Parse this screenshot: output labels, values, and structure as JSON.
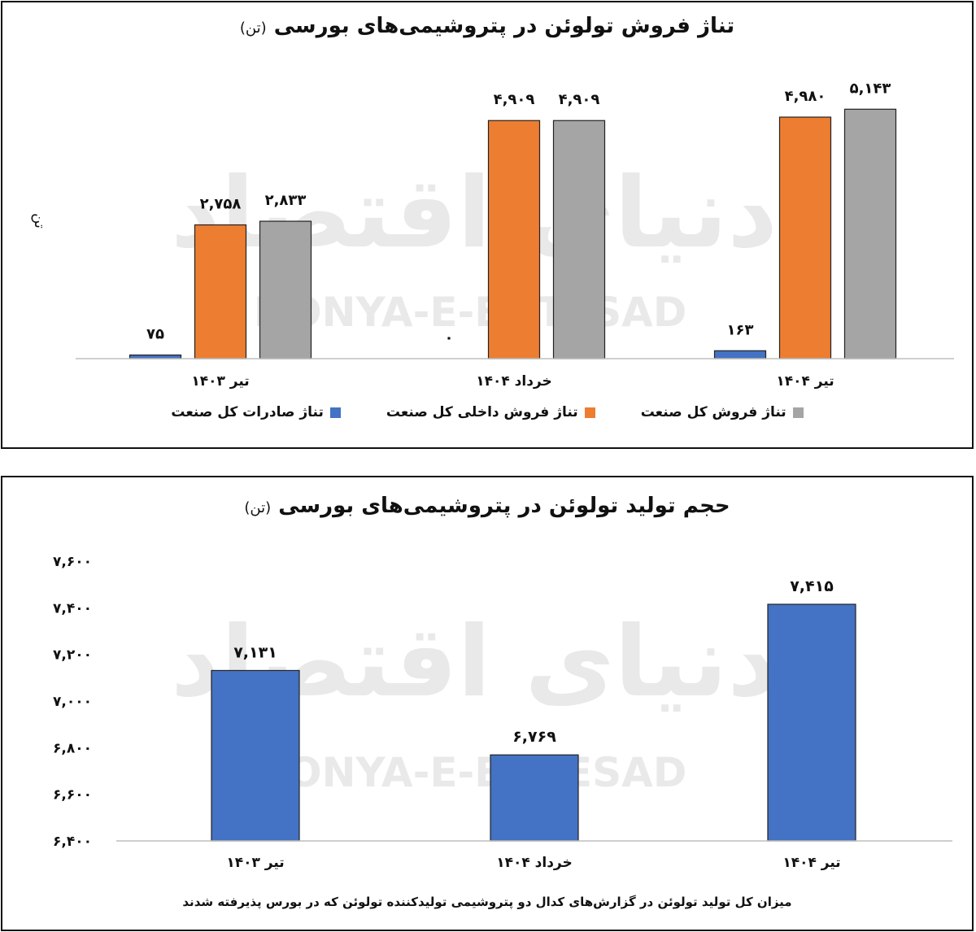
{
  "charts": [
    {
      "title": "تناژ فروش تولوئن در پتروشیمی‌های بورسی",
      "title_unit": "(تن)",
      "side_label": "تن",
      "chart_data": {
        "type": "bar",
        "categories": [
          "تیر ۱۴۰۳",
          "خرداد ۱۴۰۴",
          "تیر ۱۴۰۴"
        ],
        "series": [
          {
            "name": "تناژ صادرات کل صنعت",
            "color": "#4472c4",
            "values": [
              75,
              0,
              163
            ],
            "labels": [
              "۷۵",
              "۰",
              "۱۶۳"
            ]
          },
          {
            "name": "تناژ فروش داخلی کل صنعت",
            "color": "#ed7d31",
            "values": [
              2758,
              4909,
              4980
            ],
            "labels": [
              "۲,۷۵۸",
              "۴,۹۰۹",
              "۴,۹۸۰"
            ]
          },
          {
            "name": "تناژ فروش کل صنعت",
            "color": "#a5a5a5",
            "values": [
              2833,
              4909,
              5143
            ],
            "labels": [
              "۲,۸۳۳",
              "۴,۹۰۹",
              "۵,۱۴۳"
            ]
          }
        ],
        "ylim": [
          0,
          5500
        ],
        "grid": false,
        "legend": "bottom"
      }
    },
    {
      "title": "حجم تولید تولوئن در پتروشیمی‌های بورسی",
      "title_unit": "(تن)",
      "caption": "میزان کل تولید تولوئن در گزارش‌های کدال دو پتروشیمی تولیدکننده تولوئن که در بورس پذیرفته شدند",
      "chart_data": {
        "type": "bar",
        "categories": [
          "تیر ۱۴۰۳",
          "خرداد ۱۴۰۴",
          "تیر ۱۴۰۴"
        ],
        "series": [
          {
            "color": "#4472c4",
            "values": [
              7131,
              6769,
              7415
            ],
            "labels": [
              "۷,۱۳۱",
              "۶,۷۶۹",
              "۷,۴۱۵"
            ]
          }
        ],
        "ylim": [
          6400,
          7600
        ],
        "yticks": [
          6400,
          6600,
          6800,
          7000,
          7200,
          7400,
          7600
        ],
        "ytick_labels": [
          "۶,۴۰۰",
          "۶,۶۰۰",
          "۶,۸۰۰",
          "۷,۰۰۰",
          "۷,۲۰۰",
          "۷,۴۰۰",
          "۷,۶۰۰"
        ],
        "grid": false,
        "legend": "none"
      }
    }
  ],
  "watermark": {
    "persian": "دنیای اقتصاد",
    "latin": "DONYA-E-EQTESAD",
    "color": "#e9e9e9"
  }
}
